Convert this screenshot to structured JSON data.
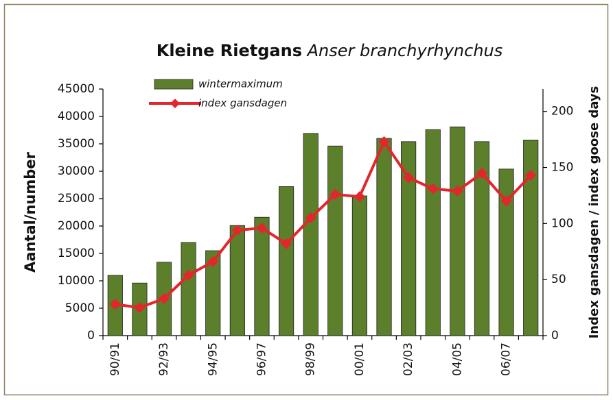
{
  "chart_data": {
    "type": "bar_line",
    "title": "Kleine Rietgans",
    "subtitle": "Anser branchyrhynchus",
    "y_label": "Aantal/number",
    "y2_label": "Index gansdagen / index goose days",
    "categories": [
      "90/91",
      null,
      "92/93",
      null,
      "94/95",
      null,
      "96/97",
      null,
      "98/99",
      null,
      "00/01",
      null,
      "02/03",
      null,
      "04/05",
      null,
      "06/07",
      null
    ],
    "series": [
      {
        "name": "wintermaximum",
        "type": "bar",
        "color": "#5b7f2b",
        "values": [
          11000,
          9600,
          13400,
          17000,
          15500,
          20100,
          21600,
          27200,
          36900,
          34600,
          25500,
          36000,
          35400,
          37600,
          38100,
          35400,
          30400,
          35700
        ]
      },
      {
        "name": "index gansdagen",
        "type": "line",
        "axis": "y2",
        "color": "#e3262b",
        "values": [
          28,
          25,
          33,
          54,
          66,
          94,
          96,
          82,
          105,
          126,
          124,
          173,
          141,
          131,
          129,
          145,
          120,
          143
        ]
      }
    ],
    "ylim": [
      0,
      45000
    ],
    "yticks": [
      0,
      5000,
      10000,
      15000,
      20000,
      25000,
      30000,
      35000,
      40000,
      45000
    ],
    "y2lim": [
      0,
      220
    ],
    "y2ticks": [
      0,
      50,
      100,
      150,
      200
    ],
    "legend": "top-left"
  }
}
